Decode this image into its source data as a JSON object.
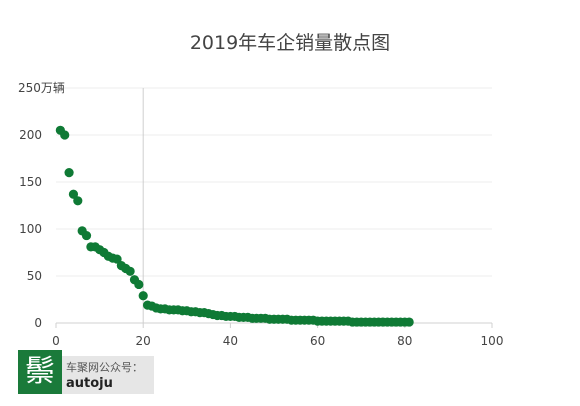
{
  "chart_data": {
    "type": "scatter",
    "title": "2019年车企销量散点图",
    "xlabel": "",
    "ylabel": "万辆",
    "xlim": [
      0,
      100
    ],
    "ylim": [
      0,
      250
    ],
    "x_ticks": [
      0,
      20,
      40,
      60,
      80,
      100
    ],
    "y_ticks": [
      0,
      50,
      100,
      150,
      200,
      250
    ],
    "y_top_tick_label": "250万辆",
    "grid": true,
    "reference_line_x": 20,
    "marker_color": "#0f7a35",
    "series": [
      {
        "points": [
          [
            1,
            205
          ],
          [
            2,
            200
          ],
          [
            3,
            160
          ],
          [
            4,
            137
          ],
          [
            5,
            130
          ],
          [
            6,
            98
          ],
          [
            7,
            93
          ],
          [
            8,
            81
          ],
          [
            9,
            81
          ],
          [
            10,
            78
          ],
          [
            11,
            75
          ],
          [
            12,
            71
          ],
          [
            13,
            69
          ],
          [
            14,
            68
          ],
          [
            15,
            61
          ],
          [
            16,
            58
          ],
          [
            17,
            55
          ],
          [
            18,
            46
          ],
          [
            19,
            41
          ],
          [
            20,
            29
          ],
          [
            21,
            19
          ],
          [
            22,
            18
          ],
          [
            23,
            16
          ],
          [
            24,
            15
          ],
          [
            25,
            15
          ],
          [
            26,
            14
          ],
          [
            27,
            14
          ],
          [
            28,
            14
          ],
          [
            29,
            13
          ],
          [
            30,
            13
          ],
          [
            31,
            12
          ],
          [
            32,
            12
          ],
          [
            33,
            11
          ],
          [
            34,
            11
          ],
          [
            35,
            10
          ],
          [
            36,
            9
          ],
          [
            37,
            8
          ],
          [
            38,
            8
          ],
          [
            39,
            7
          ],
          [
            40,
            7
          ],
          [
            41,
            7
          ],
          [
            42,
            6
          ],
          [
            43,
            6
          ],
          [
            44,
            6
          ],
          [
            45,
            5
          ],
          [
            46,
            5
          ],
          [
            47,
            5
          ],
          [
            48,
            5
          ],
          [
            49,
            4
          ],
          [
            50,
            4
          ],
          [
            51,
            4
          ],
          [
            52,
            4
          ],
          [
            53,
            4
          ],
          [
            54,
            3
          ],
          [
            55,
            3
          ],
          [
            56,
            3
          ],
          [
            57,
            3
          ],
          [
            58,
            3
          ],
          [
            59,
            3
          ],
          [
            60,
            2
          ],
          [
            61,
            2
          ],
          [
            62,
            2
          ],
          [
            63,
            2
          ],
          [
            64,
            2
          ],
          [
            65,
            2
          ],
          [
            66,
            2
          ],
          [
            67,
            2
          ],
          [
            68,
            1
          ],
          [
            69,
            1
          ],
          [
            70,
            1
          ],
          [
            71,
            1
          ],
          [
            72,
            1
          ],
          [
            73,
            1
          ],
          [
            74,
            1
          ],
          [
            75,
            1
          ],
          [
            76,
            1
          ],
          [
            77,
            1
          ],
          [
            78,
            1
          ],
          [
            79,
            1
          ],
          [
            80,
            1
          ],
          [
            81,
            1
          ]
        ]
      }
    ]
  },
  "branding": {
    "logo_char": "鬃",
    "source_label": "车聚网公众号：",
    "handle": "autoju",
    "logo_color": "#1a7a3a"
  }
}
